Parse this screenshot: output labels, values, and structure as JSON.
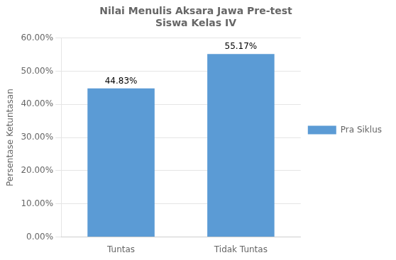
{
  "chart_data": {
    "type": "bar",
    "title": "Nilai Menulis Aksara Jawa Pre-test\nSiswa Kelas IV",
    "y_label": "Persentase Ketuntasan",
    "categories": [
      "Tuntas",
      "Tidak Tuntas"
    ],
    "series": [
      {
        "name": "Pra Siklus",
        "color": "#5B9BD5",
        "values": [
          44.83,
          55.17
        ],
        "value_labels": [
          "44.83%",
          "55.17%"
        ]
      }
    ],
    "ylim": [
      0,
      60
    ],
    "yticks": [
      {
        "value": 0,
        "label": "0.00%"
      },
      {
        "value": 10,
        "label": "10.00%"
      },
      {
        "value": 20,
        "label": "20.00%"
      },
      {
        "value": 30,
        "label": "30.00%"
      },
      {
        "value": 40,
        "label": "40.00%"
      },
      {
        "value": 50,
        "label": "50.00%"
      },
      {
        "value": 60,
        "label": "60.00%"
      }
    ],
    "grid": true,
    "legend": "right",
    "data_labels": true
  }
}
